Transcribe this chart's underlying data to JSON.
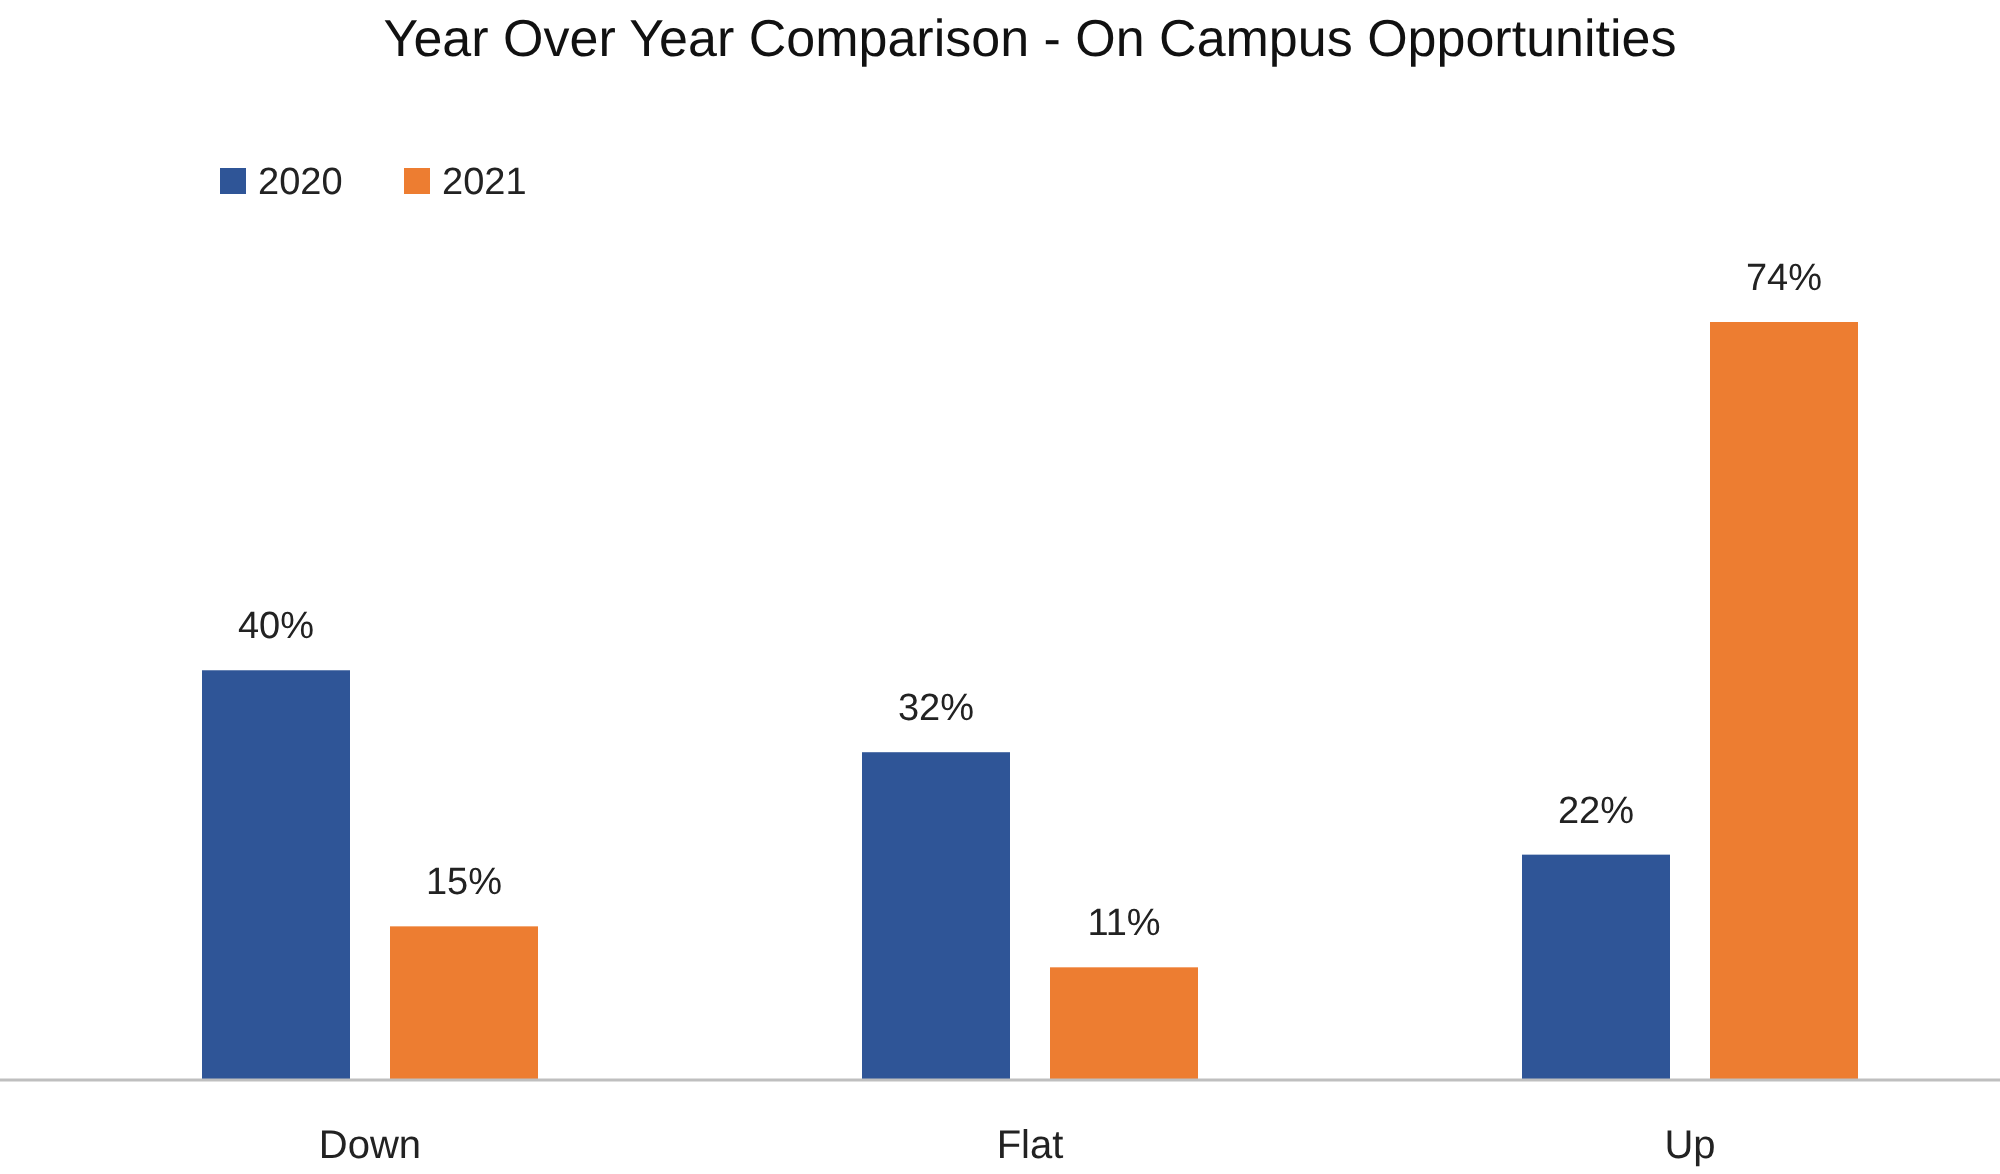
{
  "chart_data": {
    "type": "bar",
    "title": "Year Over Year Comparison - On Campus Opportunities",
    "categories": [
      "Down",
      "Flat",
      "Up"
    ],
    "series": [
      {
        "name": "2020",
        "color": "#2f5597",
        "values": [
          40,
          32,
          22
        ],
        "value_labels": [
          "40%",
          "32%",
          "22%"
        ]
      },
      {
        "name": "2021",
        "color": "#ed7d31",
        "values": [
          15,
          11,
          74
        ],
        "value_labels": [
          "15%",
          "11%",
          "74%"
        ]
      }
    ],
    "legend": "top left"
  }
}
